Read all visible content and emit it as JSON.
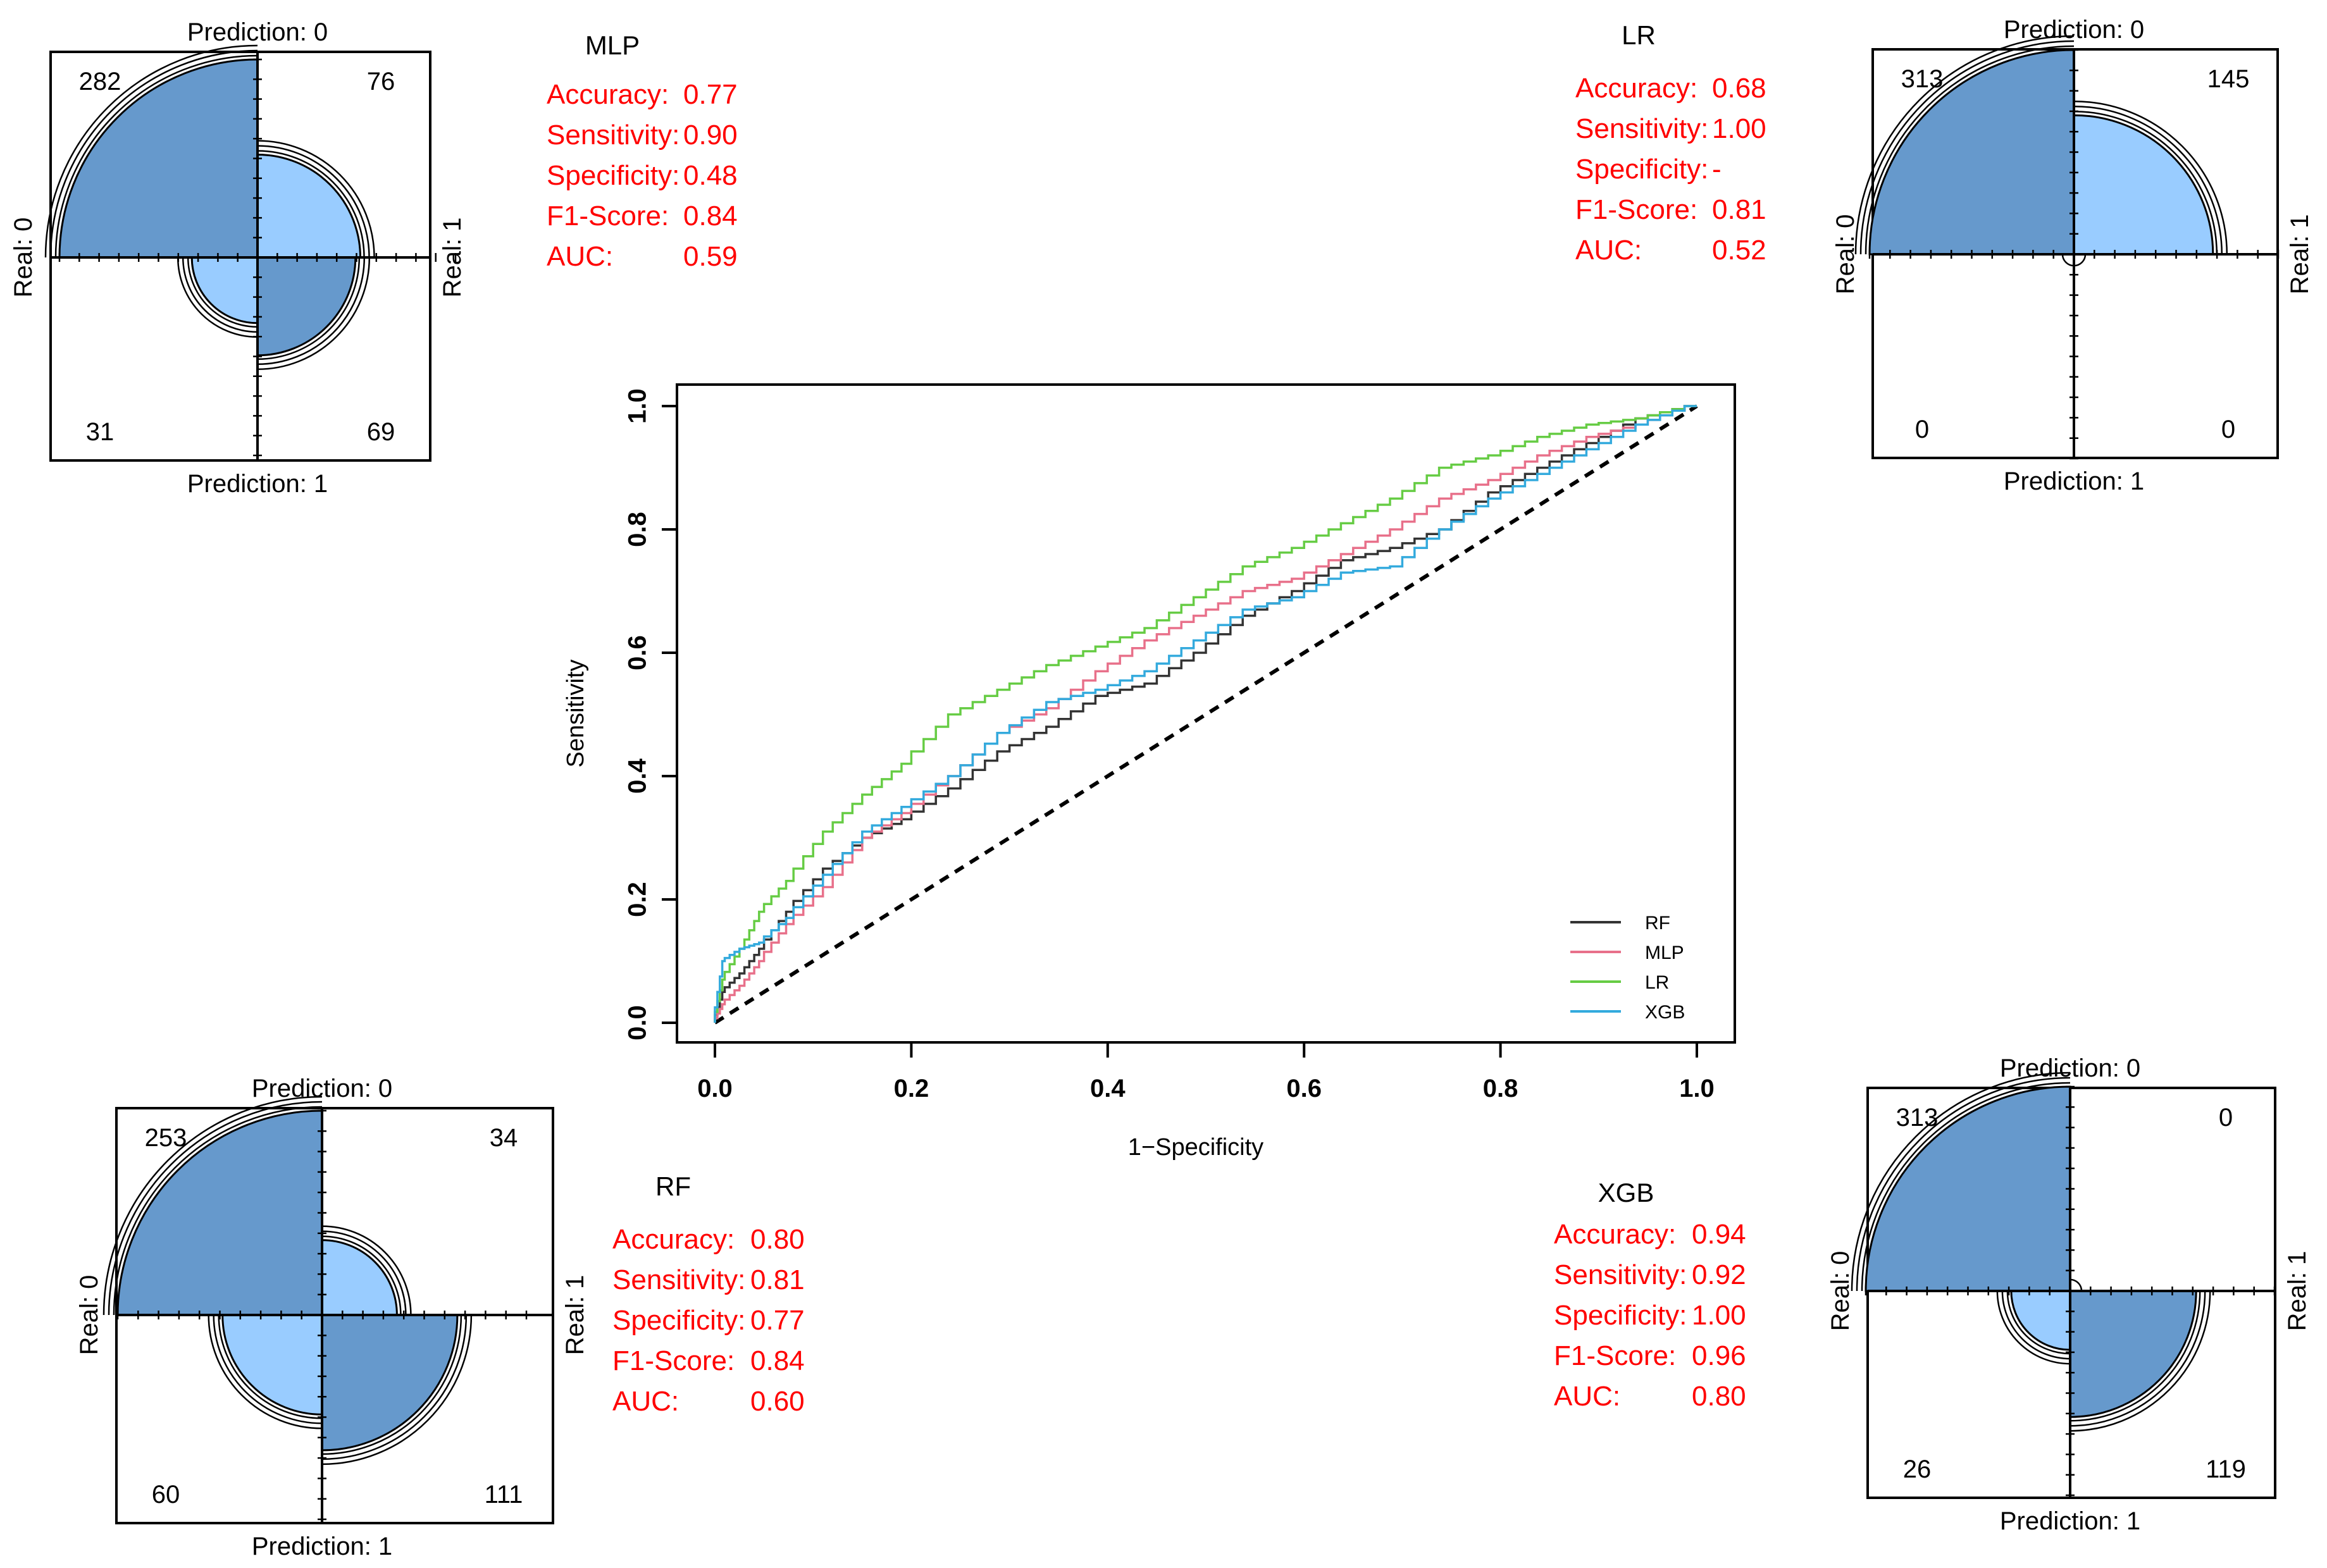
{
  "colors": {
    "dark_blue": "#6699cc",
    "light_blue": "#99ccff",
    "metric_red": "#ff0000",
    "roc_rf": "#333333",
    "roc_mlp": "#e8708a",
    "roc_lr": "#66cc44",
    "roc_xgb": "#33aadd"
  },
  "fourfold": [
    {
      "model": "MLP",
      "top_label": "Prediction: 0",
      "bottom_label": "Prediction: 1",
      "left_label": "Real: 0",
      "right_label": "Real: 1",
      "counts": {
        "tl": "282",
        "tr": "76",
        "bl": "31",
        "br": "69"
      },
      "values": {
        "tl": 282,
        "tr": 76,
        "bl": 31,
        "br": 69
      },
      "metrics_title": "MLP",
      "metrics": [
        {
          "label": "Accuracy:",
          "value": "0.77"
        },
        {
          "label": "Sensitivity:",
          "value": "0.90"
        },
        {
          "label": "Specificity:",
          "value": "0.48"
        },
        {
          "label": "F1-Score:",
          "value": "0.84"
        },
        {
          "label": "AUC:",
          "value": "0.59"
        }
      ]
    },
    {
      "model": "LR",
      "top_label": "Prediction: 0",
      "bottom_label": "Prediction: 1",
      "left_label": "Real: 0",
      "right_label": "Real: 1",
      "counts": {
        "tl": "313",
        "tr": "145",
        "bl": "0",
        "br": "0"
      },
      "values": {
        "tl": 313,
        "tr": 145,
        "bl": 0,
        "br": 0
      },
      "metrics_title": "LR",
      "metrics": [
        {
          "label": "Accuracy:",
          "value": "0.68"
        },
        {
          "label": "Sensitivity:",
          "value": "1.00"
        },
        {
          "label": "Specificity:",
          "value": "-"
        },
        {
          "label": "F1-Score:",
          "value": "0.81"
        },
        {
          "label": "AUC:",
          "value": "0.52"
        }
      ]
    },
    {
      "model": "RF",
      "top_label": "Prediction: 0",
      "bottom_label": "Prediction: 1",
      "left_label": "Real: 0",
      "right_label": "Real: 1",
      "counts": {
        "tl": "253",
        "tr": "34",
        "bl": "60",
        "br": "111"
      },
      "values": {
        "tl": 253,
        "tr": 34,
        "bl": 60,
        "br": 111
      },
      "metrics_title": "RF",
      "metrics": [
        {
          "label": "Accuracy:",
          "value": "0.80"
        },
        {
          "label": "Sensitivity:",
          "value": "0.81"
        },
        {
          "label": "Specificity:",
          "value": "0.77"
        },
        {
          "label": "F1-Score:",
          "value": "0.84"
        },
        {
          "label": "AUC:",
          "value": "0.60"
        }
      ]
    },
    {
      "model": "XGB",
      "top_label": "Prediction: 0",
      "bottom_label": "Prediction: 1",
      "left_label": "Real: 0",
      "right_label": "Real: 1",
      "counts": {
        "tl": "313",
        "tr": "0",
        "bl": "26",
        "br": "119"
      },
      "values": {
        "tl": 313,
        "tr": 0,
        "bl": 26,
        "br": 119
      },
      "metrics_title": "XGB",
      "metrics": [
        {
          "label": "Accuracy:",
          "value": "0.94"
        },
        {
          "label": "Sensitivity:",
          "value": "0.92"
        },
        {
          "label": "Specificity:",
          "value": "1.00"
        },
        {
          "label": "F1-Score:",
          "value": "0.96"
        },
        {
          "label": "AUC:",
          "value": "0.80"
        }
      ]
    }
  ],
  "chart_data": {
    "type": "line",
    "title": "",
    "xlabel": "1−Specificity",
    "ylabel": "Sensitivity",
    "xlim": [
      0,
      1
    ],
    "ylim": [
      0,
      1
    ],
    "xticks": [
      "0.0",
      "0.2",
      "0.4",
      "0.6",
      "0.8",
      "1.0"
    ],
    "yticks": [
      "0.0",
      "0.2",
      "0.4",
      "0.6",
      "0.8",
      "1.0"
    ],
    "legend_position": "bottom-right",
    "reference_line": [
      [
        0,
        0
      ],
      [
        1,
        1
      ]
    ],
    "series": [
      {
        "name": "RF",
        "color": "#333333",
        "x": [
          0,
          0.01,
          0.03,
          0.05,
          0.08,
          0.12,
          0.16,
          0.2,
          0.25,
          0.3,
          0.35,
          0.4,
          0.45,
          0.5,
          0.55,
          0.6,
          0.65,
          0.7,
          0.75,
          0.8,
          0.85,
          0.9,
          0.95,
          1.0
        ],
        "y": [
          0,
          0.05,
          0.08,
          0.12,
          0.18,
          0.25,
          0.3,
          0.33,
          0.38,
          0.44,
          0.48,
          0.53,
          0.55,
          0.6,
          0.66,
          0.7,
          0.75,
          0.77,
          0.8,
          0.86,
          0.9,
          0.94,
          0.98,
          1.0
        ]
      },
      {
        "name": "MLP",
        "color": "#e8708a",
        "x": [
          0,
          0.01,
          0.03,
          0.05,
          0.08,
          0.12,
          0.16,
          0.2,
          0.25,
          0.3,
          0.35,
          0.4,
          0.45,
          0.5,
          0.55,
          0.6,
          0.65,
          0.7,
          0.75,
          0.8,
          0.85,
          0.9,
          0.95,
          1.0
        ],
        "y": [
          0,
          0.03,
          0.06,
          0.1,
          0.16,
          0.22,
          0.3,
          0.34,
          0.4,
          0.47,
          0.51,
          0.57,
          0.62,
          0.66,
          0.7,
          0.72,
          0.76,
          0.8,
          0.85,
          0.88,
          0.92,
          0.95,
          0.97,
          1.0
        ]
      },
      {
        "name": "LR",
        "color": "#66cc44",
        "x": [
          0,
          0.01,
          0.03,
          0.05,
          0.08,
          0.12,
          0.16,
          0.2,
          0.25,
          0.3,
          0.35,
          0.4,
          0.45,
          0.5,
          0.55,
          0.6,
          0.65,
          0.7,
          0.75,
          0.8,
          0.85,
          0.9,
          0.95,
          1.0
        ],
        "y": [
          0,
          0.07,
          0.12,
          0.18,
          0.23,
          0.31,
          0.37,
          0.42,
          0.5,
          0.54,
          0.58,
          0.61,
          0.64,
          0.69,
          0.74,
          0.77,
          0.81,
          0.85,
          0.9,
          0.92,
          0.95,
          0.97,
          0.98,
          1.0
        ]
      },
      {
        "name": "XGB",
        "color": "#33aadd",
        "x": [
          0,
          0.01,
          0.03,
          0.05,
          0.08,
          0.12,
          0.16,
          0.2,
          0.25,
          0.3,
          0.35,
          0.4,
          0.45,
          0.5,
          0.55,
          0.6,
          0.65,
          0.7,
          0.75,
          0.8,
          0.85,
          0.9,
          0.95,
          1.0
        ],
        "y": [
          0,
          0.1,
          0.12,
          0.13,
          0.17,
          0.24,
          0.31,
          0.35,
          0.4,
          0.47,
          0.52,
          0.54,
          0.57,
          0.62,
          0.67,
          0.69,
          0.73,
          0.74,
          0.8,
          0.85,
          0.89,
          0.93,
          0.97,
          1.0
        ]
      }
    ]
  }
}
